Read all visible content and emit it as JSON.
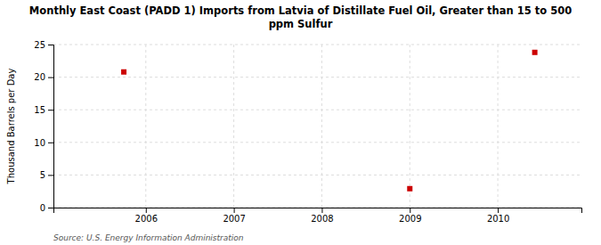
{
  "chart_data": {
    "type": "scatter",
    "title": "Monthly East Coast (PADD 1) Imports from Latvia of Distillate Fuel Oil, Greater than 15 to 500\nppm Sulfur",
    "ylabel": "Thousand Barrels per Day",
    "source": "Source: U.S. Energy Information Administration",
    "x": [
      2005.75,
      2009.0,
      2010.42
    ],
    "values": [
      20.8,
      2.9,
      23.8
    ],
    "color": "#cc0000",
    "marker": "square",
    "xlim": [
      2004.95,
      2010.95
    ],
    "ylim": [
      0,
      25
    ],
    "xticks": [
      2006,
      2007,
      2008,
      2009,
      2010
    ],
    "yticks": [
      0,
      5,
      10,
      15,
      20,
      25
    ],
    "grid": true
  }
}
